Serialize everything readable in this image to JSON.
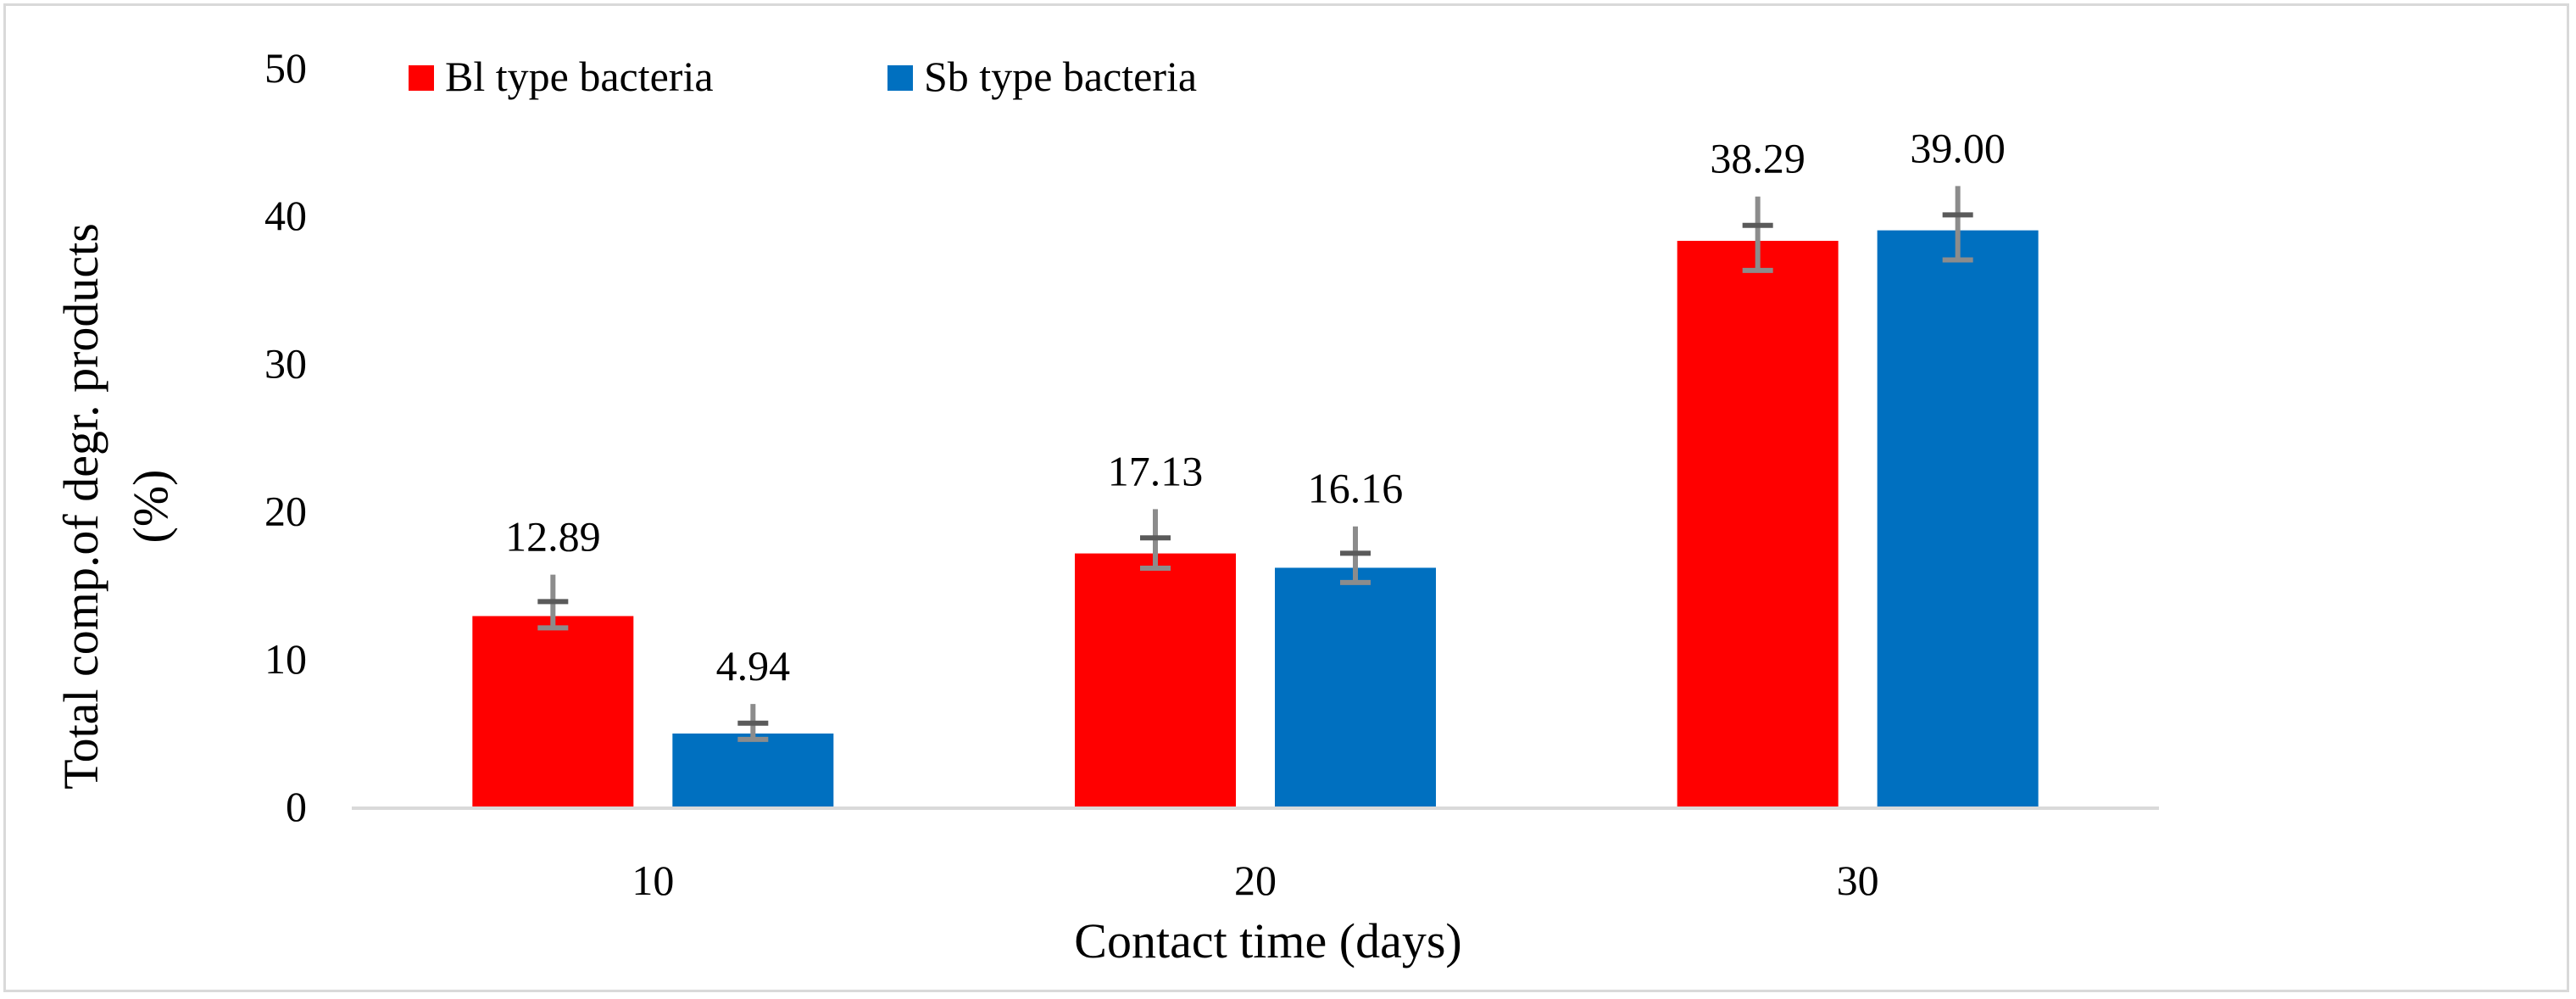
{
  "chart_data": {
    "type": "bar",
    "title": "",
    "xlabel": "Contact time (days)",
    "ylabel_lines": [
      "Total comp.of degr. products",
      "(%)"
    ],
    "categories": [
      "10",
      "20",
      "30"
    ],
    "ylim": [
      0,
      50
    ],
    "yticks": [
      "0",
      "10",
      "20",
      "30",
      "40",
      "50"
    ],
    "ytick_values": [
      0,
      10,
      20,
      30,
      40,
      50
    ],
    "grid": false,
    "legend_position": "top-left",
    "series": [
      {
        "name": "Bl type bacteria",
        "color": "#ff0000",
        "values": [
          12.89,
          17.13,
          38.29
        ],
        "labels": [
          "12.89",
          "17.13",
          "38.29"
        ],
        "error_minus": [
          0.8,
          1.0,
          2.0
        ],
        "error_plus": [
          2.8,
          3.0,
          3.0
        ]
      },
      {
        "name": "Sb type bacteria",
        "color": "#0070c0",
        "values": [
          4.94,
          16.16,
          39.0
        ],
        "labels": [
          "4.94",
          "16.16",
          "39.00"
        ],
        "error_minus": [
          0.4,
          1.0,
          2.0
        ],
        "error_plus": [
          2.0,
          2.8,
          3.0
        ]
      }
    ],
    "error_bar_color": "#8c8c8c",
    "axis_color": "#d9d9d9"
  }
}
